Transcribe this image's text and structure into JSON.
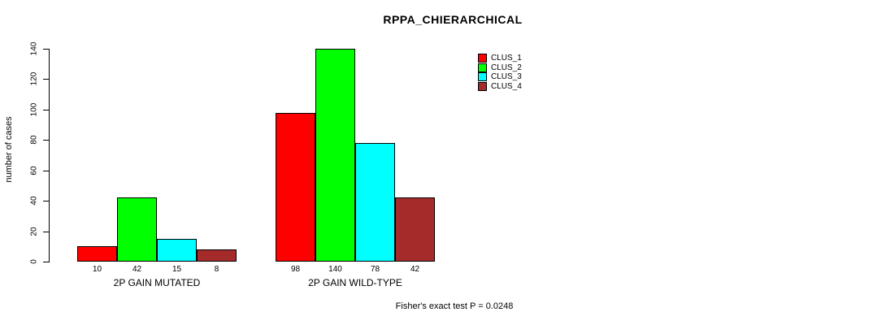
{
  "chart_data": {
    "type": "bar",
    "title": "RPPA_CHIERARCHICAL",
    "xlabel": "",
    "ylabel": "number of cases",
    "ylim": [
      0,
      140
    ],
    "yticks": [
      0,
      20,
      40,
      60,
      80,
      100,
      120,
      140
    ],
    "grid": false,
    "legend_position": "top-right",
    "value_labels": true,
    "categories": [
      "2P GAIN MUTATED",
      "2P GAIN WILD-TYPE"
    ],
    "series": [
      {
        "name": "CLUS_1",
        "color": "#ff0000",
        "values": [
          10,
          98
        ]
      },
      {
        "name": "CLUS_2",
        "color": "#00ff00",
        "values": [
          42,
          140
        ]
      },
      {
        "name": "CLUS_3",
        "color": "#00ffff",
        "values": [
          15,
          78
        ]
      },
      {
        "name": "CLUS_4",
        "color": "#a52a2a",
        "values": [
          8,
          42
        ]
      }
    ]
  },
  "footer": {
    "note": "Fisher's exact test P = 0.0248"
  },
  "colors": {
    "axis": "#000000",
    "background": "#ffffff",
    "text": "#000000"
  }
}
